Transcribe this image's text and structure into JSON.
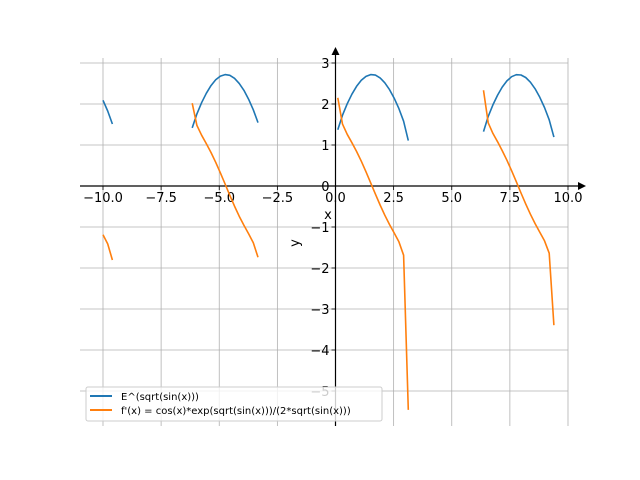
{
  "chart_data": {
    "type": "line",
    "title": "",
    "xlabel": "x",
    "ylabel": "y",
    "xlim": [
      -11.0,
      11.0
    ],
    "ylim": [
      -5.85,
      3.3
    ],
    "grid": true,
    "legend_position": "lower-left",
    "xticks": [
      -10.0,
      -7.5,
      -5.0,
      -2.5,
      0.0,
      2.5,
      5.0,
      7.5,
      10.0
    ],
    "xtick_labels": [
      "−10.0",
      "−7.5",
      "−5.0",
      "−2.5",
      "0.0",
      "2.5",
      "5.0",
      "7.5",
      "10.0"
    ],
    "yticks": [
      -5,
      -4,
      -3,
      -2,
      -1,
      0,
      1,
      2,
      3
    ],
    "ytick_labels": [
      "−5",
      "−4",
      "−3",
      "−2",
      "−1",
      "0",
      "1",
      "2",
      "3"
    ],
    "series": [
      {
        "name": "E^(sqrt(sin(x)))",
        "color": "#1f77b4",
        "segments": [
          {
            "x": [
              -10.0,
              -9.798,
              -9.596
            ],
            "y": [
              2.091,
              1.829,
              1.511
            ]
          },
          {
            "x": [
              -6.162,
              -5.96,
              -5.758,
              -5.556,
              -5.354,
              -5.152,
              -4.95,
              -4.747,
              -4.545,
              -4.343,
              -4.141,
              -3.939,
              -3.737,
              -3.535,
              -3.333
            ],
            "y": [
              1.417,
              1.758,
              2.031,
              2.26,
              2.448,
              2.59,
              2.68,
              2.717,
              2.699,
              2.627,
              2.503,
              2.333,
              2.117,
              1.859,
              1.547
            ]
          },
          {
            "x": [
              0.101,
              0.303,
              0.505,
              0.707,
              0.909,
              1.111,
              1.313,
              1.515,
              1.717,
              1.919,
              2.121,
              2.323,
              2.525,
              2.727,
              2.929,
              3.131
            ],
            "y": [
              1.374,
              1.727,
              2.005,
              2.239,
              2.431,
              2.577,
              2.674,
              2.716,
              2.704,
              2.637,
              2.518,
              2.352,
              2.141,
              1.887,
              1.581,
              1.107
            ]
          },
          {
            "x": [
              6.364,
              6.566,
              6.768,
              6.97,
              7.172,
              7.374,
              7.576,
              7.778,
              7.98,
              8.182,
              8.384,
              8.586,
              8.788,
              8.99,
              9.192,
              9.394
            ],
            "y": [
              1.328,
              1.696,
              1.979,
              2.217,
              2.413,
              2.564,
              2.666,
              2.714,
              2.708,
              2.646,
              2.532,
              2.371,
              2.164,
              1.915,
              1.615,
              1.192
            ]
          }
        ]
      },
      {
        "name": "f'(x) = cos(x)*exp(sqrt(sin(x)))/(2*sqrt(sin(x)))",
        "color": "#ff7f0e",
        "segments": [
          {
            "x": [
              -10.0,
              -9.798,
              -9.596
            ],
            "y": [
              -1.189,
              -1.411,
              -1.804
            ]
          },
          {
            "x": [
              -6.162,
              -5.96,
              -5.758,
              -5.556,
              -5.354,
              -5.152,
              -4.95,
              -4.747,
              -4.545,
              -4.343,
              -4.141,
              -3.939,
              -3.737,
              -3.535,
              -3.333
            ],
            "y": [
              2.019,
              1.478,
              1.24,
              1.035,
              0.817,
              0.578,
              0.319,
              0.048,
              -0.226,
              -0.49,
              -0.736,
              -0.959,
              -1.167,
              -1.384,
              -1.74
            ]
          },
          {
            "x": [
              0.101,
              0.303,
              0.505,
              0.707,
              0.909,
              1.111,
              1.313,
              1.515,
              1.717,
              1.919,
              2.121,
              2.323,
              2.525,
              2.727,
              2.929,
              3.131
            ],
            "y": [
              2.152,
              1.509,
              1.261,
              1.056,
              0.841,
              0.604,
              0.347,
              0.075,
              -0.198,
              -0.463,
              -0.712,
              -0.938,
              -1.146,
              -1.36,
              -1.688,
              -5.462
            ]
          },
          {
            "x": [
              6.364,
              6.566,
              6.768,
              6.97,
              7.172,
              7.374,
              7.576,
              7.778,
              7.98,
              8.182,
              8.384,
              8.586,
              8.788,
              8.99,
              9.192,
              9.394
            ],
            "y": [
              2.335,
              1.542,
              1.283,
              1.077,
              0.864,
              0.629,
              0.374,
              0.104,
              -0.17,
              -0.437,
              -0.688,
              -0.916,
              -1.126,
              -1.336,
              -1.639,
              -3.394
            ]
          }
        ]
      }
    ]
  }
}
